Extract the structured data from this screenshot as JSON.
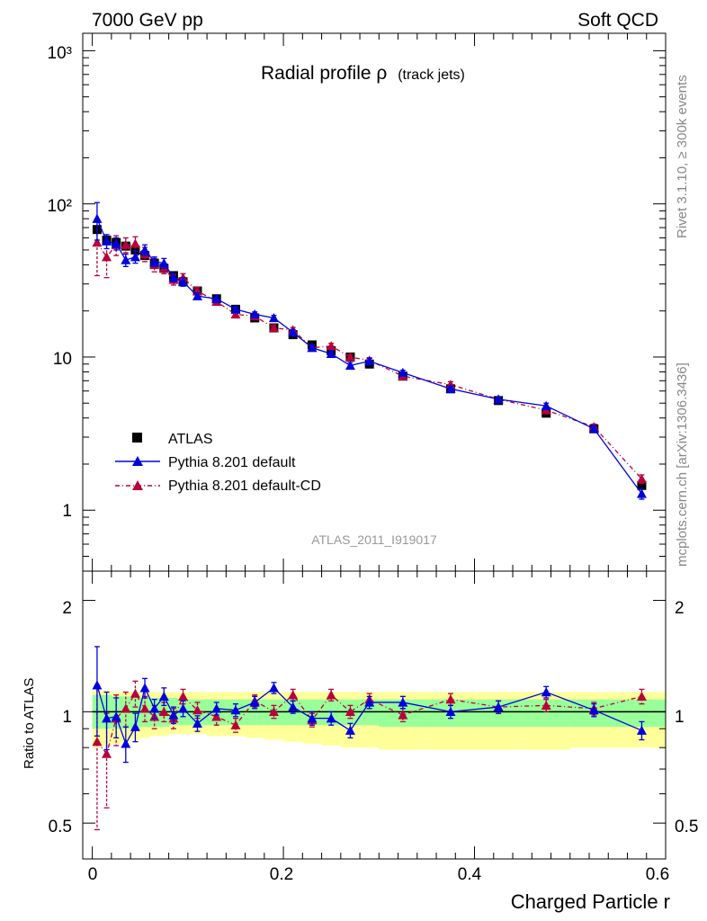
{
  "header": {
    "left": "7000 GeV pp",
    "right": "Soft QCD"
  },
  "side_labels": {
    "rivet": "Rivet 3.1.10, ≥ 300k events",
    "mcplots": "mcplots.cern.ch [arXiv:1306.3436]"
  },
  "plot": {
    "title_main": "Radial profile ρ",
    "title_sub": "(track jets)",
    "analysis_id": "ATLAS_2011_I919017",
    "xlabel": "Charged Particle r",
    "ratio_ylabel": "Ratio to ATLAS"
  },
  "legend": {
    "atlas": "ATLAS",
    "pythia_default": "Pythia 8.201 default",
    "pythia_cd": "Pythia 8.201 default-CD"
  },
  "chart_data": [
    {
      "type": "scatter",
      "panel": "main",
      "yscale": "log",
      "xlim": [
        -0.01,
        0.6
      ],
      "ylim": [
        0.4,
        1300
      ],
      "x_ticks": [
        0,
        0.2,
        0.4,
        0.6
      ],
      "y_tick_labels": [
        "1",
        "10",
        "10²",
        "10³"
      ],
      "x": [
        0.005,
        0.015,
        0.025,
        0.035,
        0.045,
        0.055,
        0.065,
        0.075,
        0.085,
        0.095,
        0.11,
        0.13,
        0.15,
        0.17,
        0.19,
        0.21,
        0.23,
        0.25,
        0.27,
        0.29,
        0.325,
        0.375,
        0.425,
        0.475,
        0.525,
        0.575
      ],
      "series": [
        {
          "name": "ATLAS",
          "color": "#000000",
          "marker": "square",
          "values": [
            68,
            58,
            56,
            53,
            50,
            46,
            41,
            38,
            34,
            31,
            27,
            24,
            20.5,
            18,
            15.5,
            14,
            12,
            11,
            10,
            9,
            7.5,
            6.2,
            5.2,
            4.3,
            3.4,
            1.45
          ]
        },
        {
          "name": "Pythia 8.201 default",
          "color": "#0000dd",
          "marker": "triangle",
          "values": [
            80,
            57,
            55,
            43,
            45,
            50,
            42,
            41,
            33,
            31,
            25,
            24,
            20.5,
            19,
            18,
            14.5,
            11.5,
            10.5,
            8.8,
            9.4,
            7.9,
            6.2,
            5.3,
            4.8,
            3.4,
            1.28
          ],
          "errors": [
            22,
            6,
            5,
            4,
            4,
            4,
            3,
            3,
            2,
            2,
            1.2,
            1,
            0.8,
            0.7,
            0.7,
            0.6,
            0.5,
            0.5,
            0.4,
            0.4,
            0.3,
            0.25,
            0.2,
            0.2,
            0.15,
            0.1
          ]
        },
        {
          "name": "Pythia 8.201 default-CD",
          "color": "#b8003a",
          "marker": "triangle",
          "values": [
            56,
            45,
            54,
            54,
            55,
            47,
            40,
            38,
            32,
            33,
            27,
            23,
            19,
            18.5,
            15.5,
            15,
            11.5,
            11.8,
            10,
            9.5,
            7.5,
            6.6,
            5.3,
            4.5,
            3.5,
            1.6
          ],
          "errors": [
            22,
            12,
            8,
            6,
            6,
            5,
            4,
            3,
            2.5,
            2,
            1.5,
            1,
            0.9,
            0.8,
            0.7,
            0.6,
            0.5,
            0.5,
            0.4,
            0.4,
            0.3,
            0.3,
            0.2,
            0.2,
            0.15,
            0.1
          ]
        }
      ]
    },
    {
      "type": "scatter",
      "panel": "ratio",
      "yscale": "log",
      "xlim": [
        -0.01,
        0.6
      ],
      "ylim": [
        0.4,
        2.4
      ],
      "y_tick_labels": [
        "0.5",
        "1",
        "2"
      ],
      "x_tick_labels": [
        "0",
        "0.2",
        "0.4",
        "0.6"
      ],
      "x": [
        0.005,
        0.015,
        0.025,
        0.035,
        0.045,
        0.055,
        0.065,
        0.075,
        0.085,
        0.095,
        0.11,
        0.13,
        0.15,
        0.17,
        0.19,
        0.21,
        0.23,
        0.25,
        0.27,
        0.29,
        0.325,
        0.375,
        0.425,
        0.475,
        0.525,
        0.575
      ],
      "band_green": [
        [
          0.9,
          1.11
        ],
        [
          0.9,
          1.11
        ],
        [
          0.9,
          1.1
        ],
        [
          0.9,
          1.1
        ],
        [
          0.9,
          1.1
        ],
        [
          0.91,
          1.09
        ],
        [
          0.91,
          1.09
        ],
        [
          0.91,
          1.09
        ],
        [
          0.92,
          1.09
        ],
        [
          0.92,
          1.08
        ],
        [
          0.92,
          1.08
        ],
        [
          0.92,
          1.08
        ],
        [
          0.92,
          1.08
        ],
        [
          0.92,
          1.08
        ],
        [
          0.92,
          1.08
        ],
        [
          0.92,
          1.08
        ],
        [
          0.92,
          1.08
        ],
        [
          0.92,
          1.08
        ],
        [
          0.92,
          1.08
        ],
        [
          0.92,
          1.08
        ],
        [
          0.91,
          1.08
        ],
        [
          0.91,
          1.08
        ],
        [
          0.91,
          1.08
        ],
        [
          0.91,
          1.08
        ],
        [
          0.91,
          1.08
        ],
        [
          0.91,
          1.08
        ]
      ],
      "band_yellow": [
        [
          0.8,
          1.14
        ],
        [
          0.81,
          1.14
        ],
        [
          0.82,
          1.13
        ],
        [
          0.83,
          1.13
        ],
        [
          0.84,
          1.13
        ],
        [
          0.85,
          1.13
        ],
        [
          0.86,
          1.13
        ],
        [
          0.86,
          1.13
        ],
        [
          0.87,
          1.13
        ],
        [
          0.87,
          1.13
        ],
        [
          0.87,
          1.13
        ],
        [
          0.86,
          1.13
        ],
        [
          0.86,
          1.13
        ],
        [
          0.85,
          1.13
        ],
        [
          0.84,
          1.13
        ],
        [
          0.83,
          1.13
        ],
        [
          0.82,
          1.13
        ],
        [
          0.81,
          1.13
        ],
        [
          0.8,
          1.13
        ],
        [
          0.8,
          1.13
        ],
        [
          0.79,
          1.13
        ],
        [
          0.79,
          1.13
        ],
        [
          0.79,
          1.13
        ],
        [
          0.79,
          1.13
        ],
        [
          0.8,
          1.13
        ],
        [
          0.8,
          1.13
        ]
      ],
      "series": [
        {
          "name": "Pythia 8.201 default",
          "color": "#0000dd",
          "values": [
            1.18,
            0.96,
            0.97,
            0.82,
            0.91,
            1.16,
            1.02,
            1.1,
            0.98,
            1.02,
            0.93,
            1.02,
            1.01,
            1.06,
            1.16,
            1.03,
            0.96,
            0.96,
            0.89,
            1.06,
            1.06,
            1.0,
            1.03,
            1.13,
            1.01,
            0.89
          ],
          "errors": [
            0.32,
            0.17,
            0.12,
            0.09,
            0.08,
            0.07,
            0.06,
            0.06,
            0.05,
            0.05,
            0.045,
            0.04,
            0.04,
            0.04,
            0.04,
            0.04,
            0.04,
            0.04,
            0.04,
            0.04,
            0.04,
            0.04,
            0.04,
            0.04,
            0.04,
            0.05
          ]
        },
        {
          "name": "Pythia 8.201 default-CD",
          "color": "#b8003a",
          "values": [
            0.83,
            0.77,
            0.96,
            1.02,
            1.12,
            1.02,
            0.97,
            1.0,
            0.96,
            1.1,
            1.01,
            0.97,
            0.92,
            1.07,
            1.0,
            1.11,
            0.95,
            1.11,
            1.0,
            1.08,
            0.98,
            1.08,
            1.03,
            1.04,
            1.02,
            1.1
          ],
          "errors": [
            0.35,
            0.22,
            0.15,
            0.11,
            0.09,
            0.08,
            0.07,
            0.06,
            0.06,
            0.05,
            0.05,
            0.05,
            0.04,
            0.04,
            0.04,
            0.04,
            0.04,
            0.04,
            0.04,
            0.04,
            0.04,
            0.04,
            0.04,
            0.04,
            0.04,
            0.05
          ]
        }
      ]
    }
  ]
}
